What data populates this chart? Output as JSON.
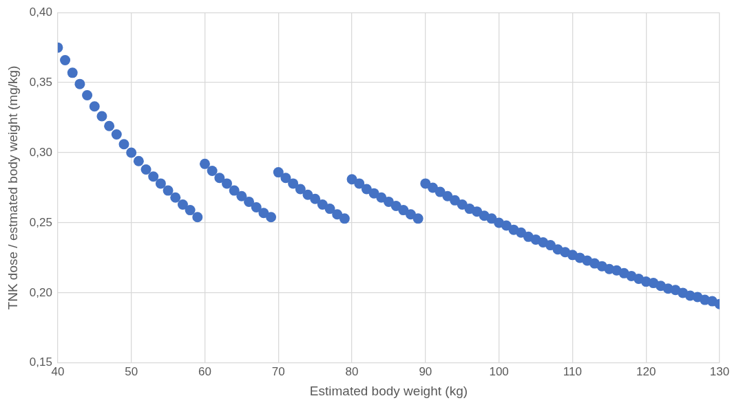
{
  "chart_data": {
    "type": "scatter",
    "xlabel": "Estimated body weight (kg)",
    "ylabel": "TNK dose / estmated body weight (mg/kg)",
    "x": [
      40,
      41,
      42,
      43,
      44,
      45,
      46,
      47,
      48,
      49,
      50,
      51,
      52,
      53,
      54,
      55,
      56,
      57,
      58,
      59,
      60,
      61,
      62,
      63,
      64,
      65,
      66,
      67,
      68,
      69,
      70,
      71,
      72,
      73,
      74,
      75,
      76,
      77,
      78,
      79,
      80,
      81,
      82,
      83,
      84,
      85,
      86,
      87,
      88,
      89,
      90,
      91,
      92,
      93,
      94,
      95,
      96,
      97,
      98,
      99,
      100,
      101,
      102,
      103,
      104,
      105,
      106,
      107,
      108,
      109,
      110,
      111,
      112,
      113,
      114,
      115,
      116,
      117,
      118,
      119,
      120,
      121,
      122,
      123,
      124,
      125,
      126,
      127,
      128,
      129,
      130
    ],
    "series": [
      {
        "color": "#4472c4",
        "values": [
          0.375,
          0.366,
          0.357,
          0.349,
          0.341,
          0.333,
          0.326,
          0.319,
          0.313,
          0.306,
          0.3,
          0.294,
          0.288,
          0.283,
          0.278,
          0.273,
          0.268,
          0.263,
          0.259,
          0.254,
          0.292,
          0.287,
          0.282,
          0.278,
          0.273,
          0.269,
          0.265,
          0.261,
          0.257,
          0.254,
          0.286,
          0.282,
          0.278,
          0.274,
          0.27,
          0.267,
          0.263,
          0.26,
          0.256,
          0.253,
          0.281,
          0.278,
          0.274,
          0.271,
          0.268,
          0.265,
          0.262,
          0.259,
          0.256,
          0.253,
          0.278,
          0.275,
          0.272,
          0.269,
          0.266,
          0.263,
          0.26,
          0.258,
          0.255,
          0.253,
          0.25,
          0.248,
          0.245,
          0.243,
          0.24,
          0.238,
          0.236,
          0.234,
          0.231,
          0.229,
          0.227,
          0.225,
          0.223,
          0.221,
          0.219,
          0.217,
          0.216,
          0.214,
          0.212,
          0.21,
          0.208,
          0.207,
          0.205,
          0.203,
          0.202,
          0.2,
          0.198,
          0.197,
          0.195,
          0.194,
          0.192
        ]
      }
    ],
    "xlim": [
      40,
      130
    ],
    "xticks": [
      40,
      50,
      60,
      70,
      80,
      90,
      100,
      110,
      120,
      130
    ],
    "ylim": [
      0.15,
      0.4
    ],
    "yticks": [
      {
        "value": 0.15,
        "label": "0,15"
      },
      {
        "value": 0.2,
        "label": "0,20"
      },
      {
        "value": 0.25,
        "label": "0,25"
      },
      {
        "value": 0.3,
        "label": "0,30"
      },
      {
        "value": 0.35,
        "label": "0,35"
      },
      {
        "value": 0.4,
        "label": "0,40"
      }
    ],
    "grid": true,
    "marker": "circle",
    "legend": false
  }
}
